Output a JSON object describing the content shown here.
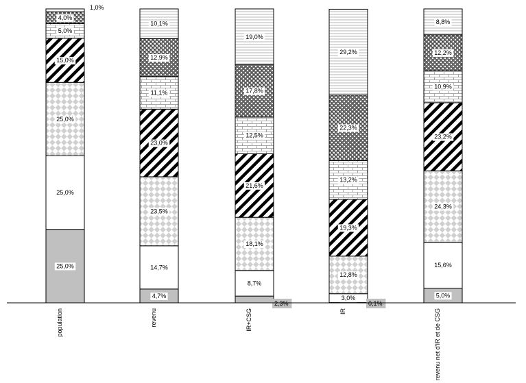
{
  "chart_data": {
    "type": "bar",
    "stacked": true,
    "percent": true,
    "ylim": [
      0,
      100
    ],
    "grid": false,
    "legend": "none",
    "categories": [
      "population",
      "revenu",
      "IR+CSG",
      "IR",
      "revenu net d'IR et de CSG"
    ],
    "series": [
      {
        "values": [
          25.0,
          4.7,
          2.3,
          0.1,
          5.0
        ],
        "labels": [
          "25,0%",
          "4,7%",
          "2,3%",
          "0,1%",
          "5,0%"
        ]
      },
      {
        "values": [
          25.0,
          14.7,
          8.7,
          3.0,
          15.6
        ],
        "labels": [
          "25,0%",
          "14,7%",
          "8,7%",
          "3,0%",
          "15,6%"
        ]
      },
      {
        "values": [
          25.0,
          23.5,
          18.1,
          12.8,
          24.3
        ],
        "labels": [
          "25,0%",
          "23,5%",
          "18,1%",
          "12,8%",
          "24,3%"
        ]
      },
      {
        "values": [
          15.0,
          23.0,
          21.6,
          19.3,
          23.2
        ],
        "labels": [
          "15,0%",
          "23,0%",
          "21,6%",
          "19,3%",
          "23,2%"
        ]
      },
      {
        "values": [
          5.0,
          11.1,
          12.5,
          13.2,
          10.9
        ],
        "labels": [
          "5,0%",
          "11,1%",
          "12,5%",
          "13,2%",
          "10,9%"
        ]
      },
      {
        "values": [
          4.0,
          12.9,
          17.8,
          22.3,
          12.2
        ],
        "labels": [
          "4,0%",
          "12,9%",
          "17,8%",
          "22,3%",
          "12,2%"
        ]
      },
      {
        "values": [
          1.0,
          10.1,
          19.0,
          29.2,
          8.8
        ],
        "labels": [
          "1,0%",
          "10,1%",
          "19,0%",
          "29,2%",
          "8,8%"
        ]
      }
    ],
    "styles": {
      "grey": "#c0c0c0",
      "white": "#ffffff",
      "ink": "#000000",
      "check_light": "#d0d0d0"
    }
  }
}
